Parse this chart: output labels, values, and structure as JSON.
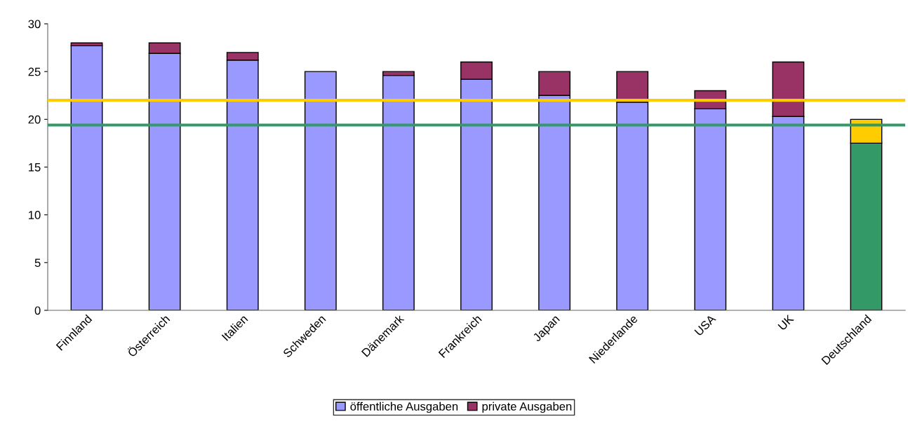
{
  "chart_data": {
    "type": "bar",
    "stacked": true,
    "categories": [
      "Finnland",
      "Österreich",
      "Italien",
      "Schweden",
      "Dänemark",
      "Frankreich",
      "Japan",
      "Niederlande",
      "USA",
      "UK",
      "Deutschland"
    ],
    "series": [
      {
        "name": "öffentliche Ausgaben",
        "color": "#9999ff",
        "colors": [
          "#9999ff",
          "#9999ff",
          "#9999ff",
          "#9999ff",
          "#9999ff",
          "#9999ff",
          "#9999ff",
          "#9999ff",
          "#9999ff",
          "#9999ff",
          "#339966"
        ],
        "values": [
          27.7,
          26.9,
          26.2,
          25,
          24.6,
          24.2,
          22.5,
          21.8,
          21.1,
          20.3,
          17.5
        ]
      },
      {
        "name": "private Ausgaben",
        "color": "#993366",
        "colors": [
          "#993366",
          "#993366",
          "#993366",
          "#993366",
          "#993366",
          "#993366",
          "#993366",
          "#993366",
          "#993366",
          "#993366",
          "#ffcc00"
        ],
        "values": [
          0.3,
          1.1,
          0.8,
          null,
          0.4,
          1.8,
          2.5,
          3.2,
          1.9,
          5.7,
          2.5
        ]
      }
    ],
    "ylim": [
      0,
      30
    ],
    "yticks": [
      0,
      5,
      10,
      15,
      20,
      25,
      30
    ],
    "ref_lines": [
      {
        "axis": "y",
        "value": 22.0,
        "label": null,
        "color": "#ffcc00"
      },
      {
        "axis": "y",
        "value": 19.4,
        "label": null,
        "color": "#339966"
      }
    ],
    "grid": false,
    "legend": "bottom"
  }
}
